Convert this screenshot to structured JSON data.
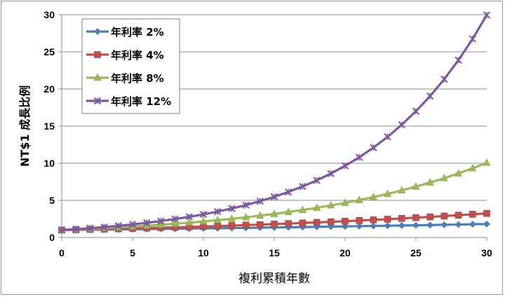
{
  "chart_data": {
    "type": "line",
    "title": "",
    "xlabel": "複利累積年數",
    "ylabel": "NT$1 成長比例",
    "xlim": [
      0,
      30
    ],
    "ylim": [
      0,
      30
    ],
    "xticks": [
      0,
      5,
      10,
      15,
      20,
      25,
      30
    ],
    "yticks": [
      0,
      5,
      10,
      15,
      20,
      25,
      30
    ],
    "grid": "horizontal",
    "legend_position": "top-left",
    "x": [
      0,
      1,
      2,
      3,
      4,
      5,
      6,
      7,
      8,
      9,
      10,
      11,
      12,
      13,
      14,
      15,
      16,
      17,
      18,
      19,
      20,
      21,
      22,
      23,
      24,
      25,
      26,
      27,
      28,
      29,
      30
    ],
    "series": [
      {
        "name": "年利率 2%",
        "color": "#4a7ebb",
        "marker": "diamond",
        "values": [
          1,
          1.02,
          1.04,
          1.06,
          1.08,
          1.1,
          1.13,
          1.15,
          1.17,
          1.2,
          1.22,
          1.24,
          1.27,
          1.29,
          1.32,
          1.35,
          1.37,
          1.4,
          1.43,
          1.46,
          1.49,
          1.52,
          1.55,
          1.58,
          1.61,
          1.64,
          1.67,
          1.71,
          1.74,
          1.78,
          1.81
        ]
      },
      {
        "name": "年利率 4%",
        "color": "#c0504d",
        "marker": "square",
        "values": [
          1,
          1.04,
          1.08,
          1.12,
          1.17,
          1.22,
          1.27,
          1.32,
          1.37,
          1.42,
          1.48,
          1.54,
          1.6,
          1.67,
          1.73,
          1.8,
          1.87,
          1.95,
          2.03,
          2.11,
          2.19,
          2.28,
          2.37,
          2.46,
          2.56,
          2.67,
          2.77,
          2.88,
          3,
          3.12,
          3.24
        ]
      },
      {
        "name": "年利率 8%",
        "color": "#9bbb59",
        "marker": "triangle",
        "values": [
          1,
          1.08,
          1.17,
          1.26,
          1.36,
          1.47,
          1.59,
          1.71,
          1.85,
          2,
          2.16,
          2.33,
          2.52,
          2.72,
          2.94,
          3.17,
          3.43,
          3.7,
          4,
          4.32,
          4.66,
          5.03,
          5.44,
          5.87,
          6.34,
          6.85,
          7.4,
          7.99,
          8.63,
          9.32,
          10.06
        ]
      },
      {
        "name": "年利率 12%",
        "color": "#7e57a2",
        "marker": "star",
        "values": [
          1,
          1.12,
          1.25,
          1.4,
          1.57,
          1.76,
          1.97,
          2.21,
          2.48,
          2.77,
          3.11,
          3.48,
          3.9,
          4.36,
          4.89,
          5.47,
          6.13,
          6.87,
          7.69,
          8.61,
          9.65,
          10.8,
          12.1,
          13.55,
          15.18,
          17,
          19.04,
          21.32,
          23.88,
          26.75,
          29.96
        ]
      }
    ]
  }
}
